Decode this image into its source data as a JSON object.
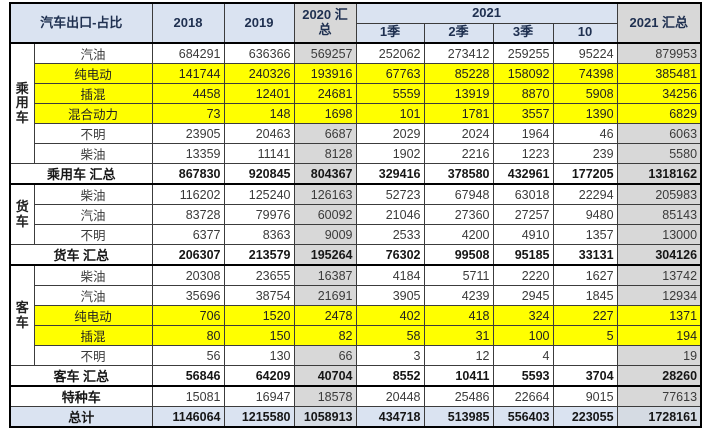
{
  "table": {
    "title": "汽车出口-占比",
    "header": {
      "y2018": "2018",
      "y2019": "2019",
      "sum2020": "2020 汇总",
      "y2021": "2021",
      "q1": "1季",
      "q2": "2季",
      "q3": "3季",
      "m10": "10",
      "sum2021": "2021 汇总"
    },
    "colors": {
      "highlight_yellow": "#ffff00",
      "summary_gray": "#d8d8d8",
      "header_blue": "#dae3f1"
    },
    "rows": [
      {
        "group": "乘用车",
        "groupSpan": 6,
        "label": "汽油",
        "style": "normal",
        "values": [
          "684291",
          "636366",
          "569257",
          "252062",
          "273412",
          "259255",
          "95224",
          "879953"
        ]
      },
      {
        "label": "纯电动",
        "style": "yellow",
        "values": [
          "141744",
          "240326",
          "193916",
          "67763",
          "85228",
          "158092",
          "74398",
          "385481"
        ]
      },
      {
        "label": "插混",
        "style": "yellow",
        "values": [
          "4458",
          "12401",
          "24681",
          "5559",
          "13919",
          "8870",
          "5908",
          "34256"
        ]
      },
      {
        "label": "混合动力",
        "style": "yellow",
        "values": [
          "73",
          "148",
          "1698",
          "101",
          "1781",
          "3557",
          "1390",
          "6829"
        ]
      },
      {
        "label": "不明",
        "style": "normal",
        "values": [
          "23905",
          "20463",
          "6687",
          "2029",
          "2024",
          "1964",
          "46",
          "6063"
        ]
      },
      {
        "label": "柴油",
        "style": "normal",
        "values": [
          "13359",
          "11141",
          "8128",
          "1902",
          "2216",
          "1223",
          "239",
          "5580"
        ]
      },
      {
        "label": "乘用车 汇总",
        "merged": true,
        "style": "subtotal",
        "values": [
          "867830",
          "920845",
          "804367",
          "329416",
          "378580",
          "432961",
          "177205",
          "1318162"
        ]
      },
      {
        "group": "货车",
        "groupSpan": 3,
        "label": "柴油",
        "style": "normal",
        "values": [
          "116202",
          "125240",
          "126163",
          "52723",
          "67948",
          "63018",
          "22294",
          "205983"
        ]
      },
      {
        "label": "汽油",
        "style": "normal",
        "values": [
          "83728",
          "79976",
          "60092",
          "21046",
          "27360",
          "27257",
          "9480",
          "85143"
        ]
      },
      {
        "label": "不明",
        "style": "normal",
        "values": [
          "6377",
          "8363",
          "9009",
          "2533",
          "4200",
          "4910",
          "1357",
          "13000"
        ]
      },
      {
        "label": "货车 汇总",
        "merged": true,
        "style": "subtotal",
        "values": [
          "206307",
          "213579",
          "195264",
          "76302",
          "99508",
          "95185",
          "33131",
          "304126"
        ]
      },
      {
        "group": "客车",
        "groupSpan": 5,
        "label": "柴油",
        "style": "normal",
        "values": [
          "20308",
          "23655",
          "16387",
          "4184",
          "5711",
          "2220",
          "1627",
          "13742"
        ]
      },
      {
        "label": "汽油",
        "style": "normal",
        "values": [
          "35696",
          "38754",
          "21691",
          "3905",
          "4239",
          "2945",
          "1845",
          "12934"
        ]
      },
      {
        "label": "纯电动",
        "style": "yellow",
        "values": [
          "706",
          "1520",
          "2478",
          "402",
          "418",
          "324",
          "227",
          "1371"
        ]
      },
      {
        "label": "插混",
        "style": "yellow",
        "values": [
          "80",
          "150",
          "82",
          "58",
          "31",
          "100",
          "5",
          "194"
        ]
      },
      {
        "label": "不明",
        "style": "normal",
        "values": [
          "56",
          "130",
          "66",
          "3",
          "12",
          "4",
          "",
          "19"
        ]
      },
      {
        "label": "客车 汇总",
        "merged": true,
        "style": "subtotal",
        "values": [
          "56846",
          "64209",
          "40704",
          "8552",
          "10411",
          "5593",
          "3704",
          "28260"
        ]
      },
      {
        "label": "特种车",
        "merged": true,
        "style": "special",
        "values": [
          "15081",
          "16947",
          "18578",
          "20448",
          "25486",
          "22664",
          "9015",
          "77613"
        ]
      },
      {
        "label": "总计",
        "merged": true,
        "style": "total",
        "values": [
          "1146064",
          "1215580",
          "1058913",
          "434718",
          "513985",
          "556403",
          "223055",
          "1728161"
        ]
      }
    ]
  }
}
